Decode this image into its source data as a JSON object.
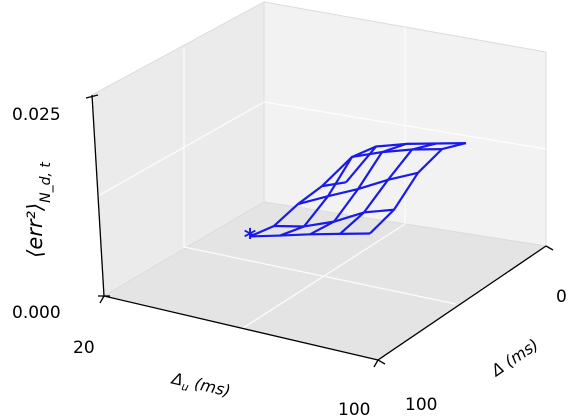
{
  "chart_data": {
    "type": "surface-wireframe",
    "zlabel": "⟨err²⟩",
    "zlabel_subscript": "N_d, t",
    "xlabel": "Δ (ms)",
    "ylabel": "Δ",
    "ylabel_subscript": "u",
    "ylabel_units": " (ms)",
    "zticks": [
      "0.000",
      "0.025"
    ],
    "xticks": [
      "0",
      "100"
    ],
    "yticks": [
      "20",
      "100"
    ],
    "xlim": [
      0,
      100
    ],
    "ylim": [
      20,
      100
    ],
    "zlim": [
      0,
      0.025
    ],
    "x": [
      0,
      25,
      50,
      75,
      100
    ],
    "y": [
      20,
      40,
      60,
      80,
      100
    ],
    "z": [
      [
        0.0042,
        0.0062,
        0.0108,
        0.0145,
        0.015
      ],
      [
        0.0048,
        0.0065,
        0.013,
        0.0215,
        0.0235
      ],
      [
        0.0055,
        0.008,
        0.015,
        0.023,
        0.0245
      ],
      [
        0.006,
        0.0105,
        0.0175,
        0.024,
        0.025
      ],
      [
        0.0065,
        0.0115,
        0.0195,
        0.0245,
        0.0255
      ]
    ],
    "minimum_marker": {
      "x": 0,
      "y": 20,
      "z": 0.0042,
      "symbol": "*"
    },
    "line_color": "#1a1aeb",
    "pane_color": "#f2f2f2",
    "grid": true
  }
}
